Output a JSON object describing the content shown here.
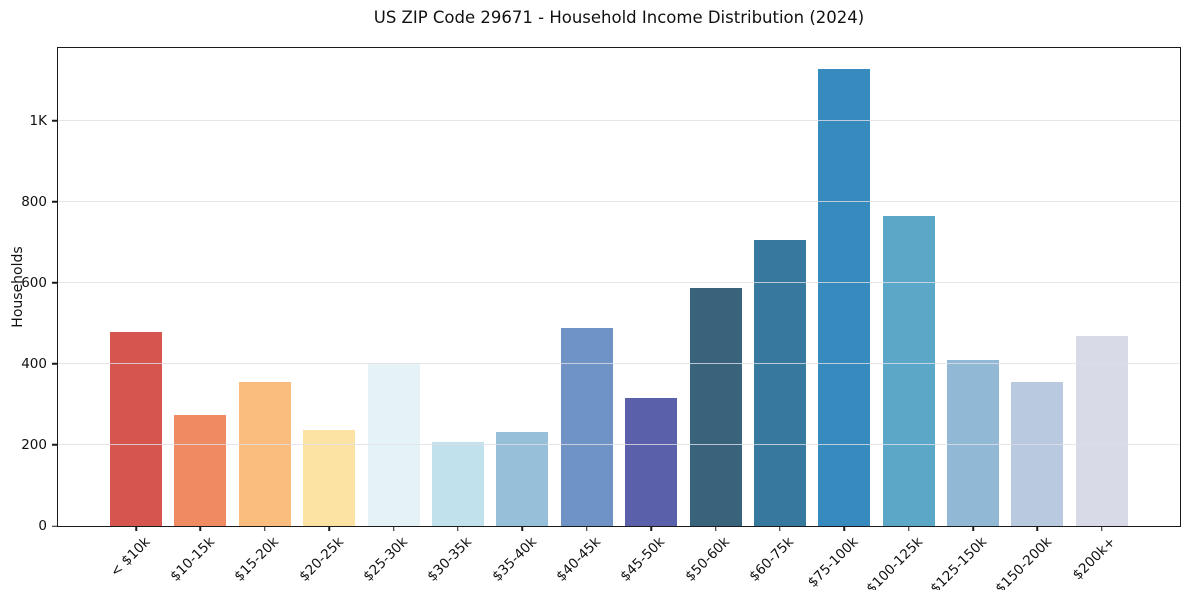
{
  "chart_data": {
    "type": "bar",
    "title": "US ZIP Code 29671 - Household Income Distribution (2024)",
    "xlabel": "",
    "ylabel": "Households",
    "ylim": [
      0,
      1180
    ],
    "grid": "horizontal-light",
    "legend": "none",
    "categories": [
      "< $10k",
      "$10-15k",
      "$15-20k",
      "$20-25k",
      "$25-30k",
      "$30-35k",
      "$35-40k",
      "$40-45k",
      "$45-50k",
      "$50-60k",
      "$60-75k",
      "$75-100k",
      "$100-125k",
      "$125-150k",
      "$150-200k",
      "$200k+"
    ],
    "values": [
      480,
      275,
      355,
      238,
      402,
      207,
      233,
      490,
      315,
      588,
      705,
      1128,
      765,
      410,
      355,
      470
    ],
    "bar_colors": [
      "#d6564f",
      "#f08a62",
      "#fabd7e",
      "#fde3a3",
      "#e5f2f6",
      "#c1e1ed",
      "#96bfda",
      "#6f93c5",
      "#5b60aa",
      "#38637a",
      "#36789e",
      "#368abd",
      "#5ba7c8",
      "#91b9d5",
      "#b9c9df",
      "#d8dae8"
    ],
    "yticks": [
      {
        "value": 0,
        "label": "0"
      },
      {
        "value": 200,
        "label": "200"
      },
      {
        "value": 400,
        "label": "400"
      },
      {
        "value": 600,
        "label": "600"
      },
      {
        "value": 800,
        "label": "800"
      },
      {
        "value": 1000,
        "label": "1K"
      }
    ],
    "axis_color": "#1a1a1a",
    "gridline_color": "#e8e8ec",
    "text_color": "#111111"
  }
}
